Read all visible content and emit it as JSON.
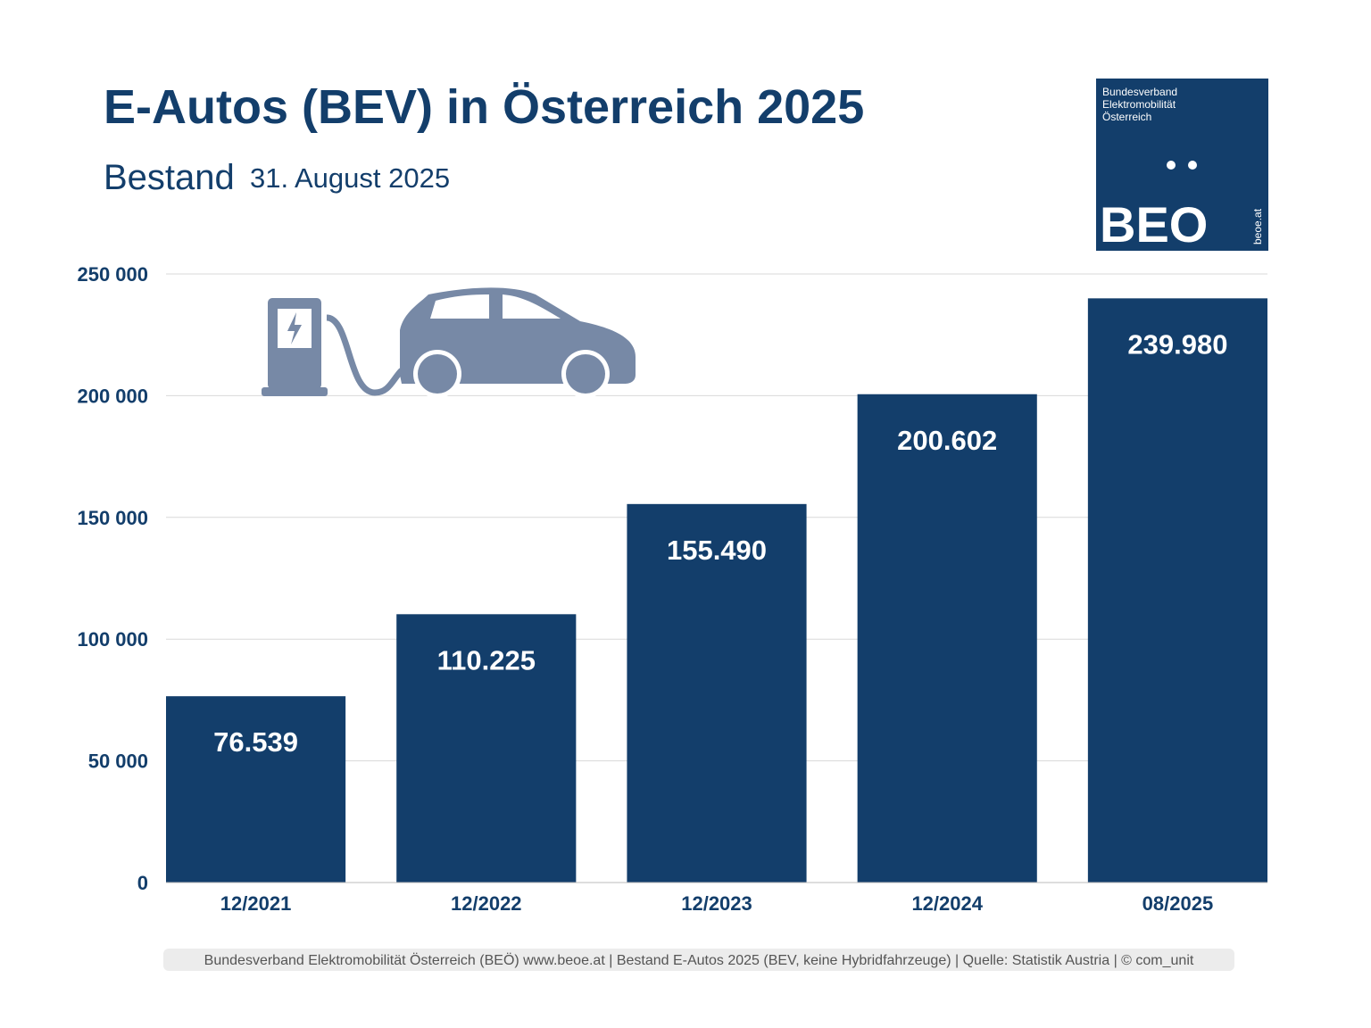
{
  "chart_data": {
    "type": "bar",
    "title": "E-Autos (BEV) in Österreich 2025",
    "subtitle": "Bestand",
    "date": "31. August 2025",
    "logo": {
      "lines": [
        "Bundesverband",
        "Elektromobilität",
        "Österreich"
      ],
      "mark": "BEO",
      "url": "beoe.at"
    },
    "categories": [
      "12/2021",
      "12/2022",
      "12/2023",
      "12/2024",
      "08/2025"
    ],
    "values": [
      76539,
      110225,
      155490,
      200602,
      239980
    ],
    "value_labels": [
      "76.539",
      "110.225",
      "155.490",
      "200.602",
      "239.980"
    ],
    "color": "#133e6b",
    "ylim": [
      0,
      250000
    ],
    "yticks": [
      0,
      {
        "value": 50000,
        "label": "50 000"
      },
      {
        "value": 100000,
        "label": "100 000"
      },
      {
        "value": 150000,
        "label": "150 000"
      },
      {
        "value": 200000,
        "label": "200 000"
      },
      {
        "value": 250000,
        "label": "250 000"
      }
    ],
    "grid": true,
    "footer": "Bundesverband Elektromobilität Österreich (BEÖ) www.beoe.at | Bestand E-Autos 2025 (BEV, keine Hybridfahrzeuge) | Quelle: Statistik Austria | © com_unit"
  }
}
